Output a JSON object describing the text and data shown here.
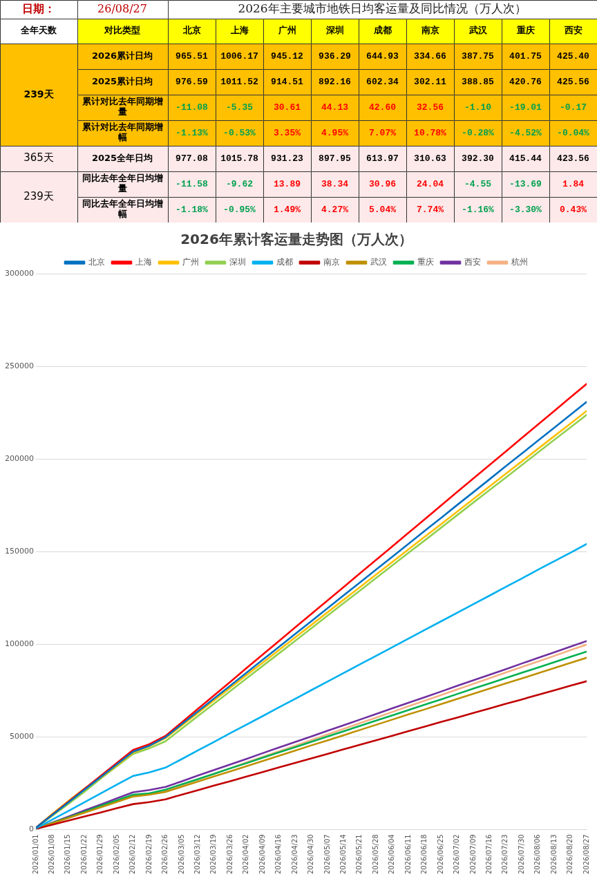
{
  "chart_data": [
    {
      "type": "heatmap",
      "title": "2026年主要城市地铁日均客运量及同比情况（万人次）",
      "annotations": [
        "日期：",
        "26/08/27",
        "全年天数",
        "对比类型",
        "239天",
        "365天",
        "239天"
      ],
      "categories": [
        "北京",
        "上海",
        "广州",
        "深圳",
        "成都",
        "南京",
        "武汉",
        "重庆",
        "西安"
      ],
      "y_categories": [
        "2026累计日均",
        "2025累计日均",
        "累计对比去年同期增量",
        "累计对比去年同期增幅",
        "2025全年日均",
        "同比去年全年日均增量",
        "同比去年全年日均增幅"
      ],
      "cells": [
        [
          965.51,
          1006.17,
          945.12,
          936.29,
          644.93,
          334.66,
          387.75,
          401.75,
          425.4
        ],
        [
          976.59,
          1011.52,
          914.51,
          892.16,
          602.34,
          302.11,
          388.85,
          420.76,
          425.56
        ],
        [
          -11.08,
          -5.35,
          30.61,
          44.13,
          42.6,
          32.56,
          -1.1,
          -19.01,
          -0.17
        ],
        [
          -1.13,
          -0.53,
          3.35,
          4.95,
          7.07,
          10.78,
          -0.28,
          -4.52,
          -0.04
        ],
        [
          977.08,
          1015.78,
          931.23,
          897.95,
          613.97,
          310.63,
          392.3,
          415.44,
          423.56
        ],
        [
          -11.58,
          -9.62,
          13.89,
          38.34,
          30.96,
          24.04,
          -4.55,
          -13.69,
          1.84
        ],
        [
          -1.18,
          -0.95,
          1.49,
          4.27,
          5.04,
          7.74,
          -1.16,
          -3.3,
          0.43
        ]
      ],
      "cell_labels": [
        [
          "965.51",
          "1006.17",
          "945.12",
          "936.29",
          "644.93",
          "334.66",
          "387.75",
          "401.75",
          "425.40"
        ],
        [
          "976.59",
          "1011.52",
          "914.51",
          "892.16",
          "602.34",
          "302.11",
          "388.85",
          "420.76",
          "425.56"
        ],
        [
          "-11.08",
          "-5.35",
          "30.61",
          "44.13",
          "42.60",
          "32.56",
          "-1.10",
          "-19.01",
          "-0.17"
        ],
        [
          "-1.13%",
          "-0.53%",
          "3.35%",
          "4.95%",
          "7.07%",
          "10.78%",
          "-0.28%",
          "-4.52%",
          "-0.04%"
        ],
        [
          "977.08",
          "1015.78",
          "931.23",
          "897.95",
          "613.97",
          "310.63",
          "392.30",
          "415.44",
          "423.56"
        ],
        [
          "-11.58",
          "-9.62",
          "13.89",
          "38.34",
          "30.96",
          "24.04",
          "-4.55",
          "-13.69",
          "1.84"
        ],
        [
          "-1.18%",
          "-0.95%",
          "1.49%",
          "4.27%",
          "5.04%",
          "7.74%",
          "-1.16%",
          "-3.30%",
          "0.43%"
        ]
      ]
    },
    {
      "type": "line",
      "title": "2026年累计客运量走势图（万人次）",
      "x": [
        "2026-01-01",
        "2026-01-08",
        "2026-01-15",
        "2026-01-22",
        "2026-01-29",
        "2026-02-05",
        "2026-02-12",
        "2026-02-19",
        "2026-02-26",
        "2026-03-05",
        "2026-03-12",
        "2026-03-19",
        "2026-03-26",
        "2026-04-02",
        "2026-04-09",
        "2026-04-16",
        "2026-04-23",
        "2026-04-30",
        "2026-05-07",
        "2026-05-14",
        "2026-05-21",
        "2026-05-28",
        "2026-06-04",
        "2026-06-11",
        "2026-06-18",
        "2026-06-25",
        "2026-07-02",
        "2026-07-09",
        "2026-07-16",
        "2026-07-23",
        "2026-07-30",
        "2026-08-06",
        "2026-08-13",
        "2026-08-20",
        "2026-08-27"
      ],
      "series": [
        {
          "name": "北京",
          "color": "#0070c0",
          "values": [
            1000,
            7800,
            14600,
            21500,
            28300,
            35200,
            42000,
            45200,
            49800,
            56800,
            63700,
            70700,
            77600,
            84600,
            91600,
            98500,
            105500,
            112400,
            119400,
            126400,
            133300,
            140300,
            147200,
            154200,
            161200,
            168100,
            175100,
            182000,
            189000,
            196000,
            202900,
            209900,
            216800,
            223800,
            230800
          ]
        },
        {
          "name": "上海",
          "color": "#ff0000",
          "values": [
            1000,
            8000,
            15000,
            21900,
            28900,
            35900,
            42900,
            46000,
            50500,
            57800,
            65100,
            72400,
            79700,
            87100,
            94400,
            101700,
            109000,
            116300,
            123600,
            130900,
            138200,
            145500,
            152800,
            160100,
            167400,
            174800,
            182100,
            189400,
            196700,
            204000,
            211300,
            218600,
            225900,
            233200,
            240500
          ]
        },
        {
          "name": "广州",
          "color": "#ffc000",
          "values": [
            1000,
            8300,
            15300,
            22100,
            28000,
            34700,
            41500,
            45000,
            49300,
            56100,
            62900,
            69700,
            76500,
            83300,
            90000,
            96800,
            103600,
            110400,
            117200,
            124000,
            130800,
            137600,
            144400,
            151200,
            158000,
            164700,
            171500,
            178300,
            185100,
            191900,
            198700,
            205500,
            212300,
            219100,
            225900
          ]
        },
        {
          "name": "深圳",
          "color": "#92d050",
          "values": [
            1000,
            7300,
            13800,
            20400,
            27500,
            34200,
            40800,
            43800,
            47600,
            54400,
            61200,
            67900,
            74700,
            81500,
            88300,
            95000,
            101800,
            108600,
            115400,
            122200,
            128900,
            135700,
            142500,
            149300,
            156000,
            162800,
            169600,
            176400,
            183200,
            189900,
            196700,
            203500,
            210300,
            217000,
            223800
          ]
        },
        {
          "name": "成都",
          "color": "#00b0f0",
          "values": [
            600,
            5300,
            10000,
            14700,
            19500,
            24200,
            28900,
            30800,
            33400,
            38000,
            42700,
            47300,
            52000,
            56600,
            61200,
            65900,
            70500,
            75200,
            79800,
            84500,
            89100,
            93700,
            98400,
            103000,
            107700,
            112300,
            116900,
            121600,
            126200,
            130900,
            135500,
            140200,
            144800,
            149400,
            154100
          ]
        },
        {
          "name": "南京",
          "color": "#c00000",
          "values": [
            300,
            2600,
            4800,
            7000,
            9200,
            11500,
            13700,
            14800,
            16300,
            18800,
            21200,
            23700,
            26100,
            28600,
            31000,
            33500,
            35900,
            38400,
            40800,
            43300,
            45700,
            48200,
            50600,
            53100,
            55500,
            58000,
            60400,
            62900,
            65300,
            67800,
            70200,
            72700,
            75100,
            77600,
            80000
          ]
        },
        {
          "name": "武汉",
          "color": "#bf9000",
          "values": [
            400,
            3300,
            6200,
            9100,
            12000,
            14900,
            17800,
            18800,
            20300,
            23100,
            25900,
            28700,
            31400,
            34200,
            37000,
            39800,
            42600,
            45400,
            48100,
            50900,
            53700,
            56500,
            59300,
            62100,
            64800,
            67600,
            70400,
            73200,
            76000,
            78800,
            81500,
            84300,
            87100,
            89900,
            92700
          ]
        },
        {
          "name": "重庆",
          "color": "#00b050",
          "values": [
            400,
            3500,
            6500,
            9600,
            12700,
            15700,
            18800,
            19500,
            21500,
            24400,
            27200,
            30100,
            33000,
            35800,
            38700,
            41600,
            44400,
            47300,
            50200,
            53000,
            55900,
            58800,
            61600,
            64500,
            67400,
            70200,
            73100,
            76000,
            78800,
            81700,
            84600,
            87400,
            90300,
            93200,
            96000
          ]
        },
        {
          "name": "西安",
          "color": "#7030a0",
          "values": [
            400,
            3700,
            7000,
            10300,
            13500,
            16800,
            20100,
            21300,
            23000,
            26000,
            29100,
            32100,
            35100,
            38100,
            41200,
            44200,
            47200,
            50200,
            53300,
            56300,
            59300,
            62300,
            65400,
            68400,
            71400,
            74400,
            77500,
            80500,
            83500,
            86500,
            89600,
            92600,
            95600,
            98700,
            101700
          ]
        },
        {
          "name": "杭州",
          "color": "#f4b183",
          "values": [
            400,
            3400,
            6400,
            9500,
            12500,
            15500,
            18500,
            19300,
            21000,
            24000,
            27100,
            30100,
            33100,
            36200,
            39200,
            42200,
            45200,
            48300,
            51300,
            54300,
            57400,
            60400,
            63400,
            66500,
            69500,
            72500,
            75600,
            78600,
            81600,
            84700,
            87700,
            90700,
            93700,
            96800,
            99800
          ]
        }
      ],
      "xlim": [
        "2026-01-01",
        "2026-08-27"
      ],
      "xticks": [
        {
          "value": "2026-01-01",
          "label": "2026/01/01"
        },
        {
          "value": "2026-01-08",
          "label": "2026/01/08"
        },
        {
          "value": "2026-01-15",
          "label": "2026/01/15"
        },
        {
          "value": "2026-01-22",
          "label": "2026/01/22"
        },
        {
          "value": "2026-01-29",
          "label": "2026/01/29"
        },
        {
          "value": "2026-02-05",
          "label": "2026/02/05"
        },
        {
          "value": "2026-02-12",
          "label": "2026/02/12"
        },
        {
          "value": "2026-02-19",
          "label": "2026/02/19"
        },
        {
          "value": "2026-02-26",
          "label": "2026/02/26"
        },
        {
          "value": "2026-03-05",
          "label": "2026/03/05"
        },
        {
          "value": "2026-03-12",
          "label": "2026/03/12"
        },
        {
          "value": "2026-03-19",
          "label": "2026/03/19"
        },
        {
          "value": "2026-03-26",
          "label": "2026/03/26"
        },
        {
          "value": "2026-04-02",
          "label": "2026/04/02"
        },
        {
          "value": "2026-04-09",
          "label": "2026/04/09"
        },
        {
          "value": "2026-04-16",
          "label": "2026/04/16"
        },
        {
          "value": "2026-04-23",
          "label": "2026/04/23"
        },
        {
          "value": "2026-04-30",
          "label": "2026/04/30"
        },
        {
          "value": "2026-05-07",
          "label": "2026/05/07"
        },
        {
          "value": "2026-05-14",
          "label": "2026/05/14"
        },
        {
          "value": "2026-05-21",
          "label": "2026/05/21"
        },
        {
          "value": "2026-05-28",
          "label": "2026/05/28"
        },
        {
          "value": "2026-06-04",
          "label": "2026/06/04"
        },
        {
          "value": "2026-06-11",
          "label": "2026/06/11"
        },
        {
          "value": "2026-06-18",
          "label": "2026/06/18"
        },
        {
          "value": "2026-06-25",
          "label": "2026/06/25"
        },
        {
          "value": "2026-07-02",
          "label": "2026/07/02"
        },
        {
          "value": "2026-07-09",
          "label": "2026/07/09"
        },
        {
          "value": "2026-07-16",
          "label": "2026/07/16"
        },
        {
          "value": "2026-07-23",
          "label": "2026/07/23"
        },
        {
          "value": "2026-07-30",
          "label": "2026/07/30"
        },
        {
          "value": "2026-08-06",
          "label": "2026/08/06"
        },
        {
          "value": "2026-08-13",
          "label": "2026/08/13"
        },
        {
          "value": "2026-08-20",
          "label": "2026/08/20"
        },
        {
          "value": "2026-08-27",
          "label": "2026/08/27"
        }
      ],
      "ylim": [
        0,
        300000
      ],
      "yticks": [
        0,
        50000,
        100000,
        150000,
        200000,
        250000,
        300000
      ],
      "grid": "y",
      "legend": "top",
      "marker": "none",
      "line_style": "solid"
    }
  ]
}
